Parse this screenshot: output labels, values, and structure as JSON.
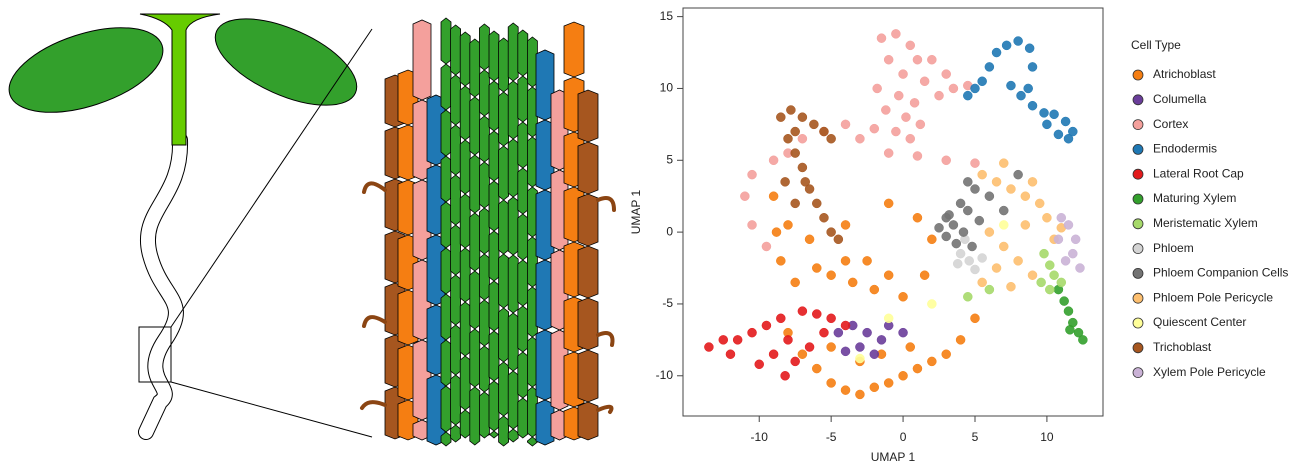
{
  "chart_data": {
    "type": "scatter",
    "xlabel": "UMAP 1",
    "ylabel": "UMAP 1",
    "xlim": [
      -15.3,
      13.9
    ],
    "ylim": [
      -12.8,
      15.6
    ],
    "xticks": [
      -10,
      -5,
      0,
      5,
      10
    ],
    "yticks": [
      -10,
      -5,
      0,
      5,
      10,
      15
    ],
    "legend_title": "Cell Type",
    "series": [
      {
        "name": "Atrichoblast",
        "color": "#f57e12",
        "x": [
          -8,
          -7,
          -6,
          -5,
          -4,
          -3,
          -2,
          -1,
          0,
          1,
          2,
          3,
          4,
          5,
          -3,
          -1.5,
          0.5,
          -5,
          -9,
          -8.8,
          -8.5,
          -7.5,
          -6,
          -5,
          -3.5,
          -2,
          -4,
          -6.5,
          -2.5,
          -1,
          0,
          1.5,
          2,
          1,
          -1,
          -8,
          -4
        ],
        "y": [
          -7,
          -8.5,
          -9.5,
          -10.5,
          -11,
          -11.3,
          -10.8,
          -10.5,
          -10,
          -9.5,
          -9,
          -8.5,
          -7.5,
          -6,
          -9,
          -8.5,
          -8,
          -8,
          2.5,
          0,
          -2,
          -3.5,
          -2.5,
          -3,
          -3.5,
          -4,
          -2,
          -0.5,
          -2,
          -3,
          -4.5,
          -3,
          -0.5,
          1,
          2,
          0.5,
          0.5
        ]
      },
      {
        "name": "Columella",
        "color": "#6a3d9a",
        "x": [
          -4.5,
          -3.5,
          -2.5,
          -1.5,
          -3,
          -2,
          -4,
          -1,
          0
        ],
        "y": [
          -7,
          -6.5,
          -7,
          -7.5,
          -8,
          -8.5,
          -8.3,
          -6.5,
          -7
        ]
      },
      {
        "name": "Cortex",
        "color": "#f4a09c",
        "x": [
          -1.5,
          -0.5,
          0.5,
          1,
          -1,
          0,
          1.5,
          -1.8,
          -0.3,
          0.8,
          -1.2,
          0.2,
          -0.5,
          0.5,
          1.2,
          2.5,
          3.5,
          4.5,
          3,
          2,
          -4,
          -5.5,
          -7,
          -9,
          -10.5,
          -11,
          -10.5,
          -9.5,
          -8,
          -3,
          -2,
          -1,
          1,
          3,
          5
        ],
        "y": [
          13.5,
          13.8,
          13,
          12,
          12,
          11,
          10.5,
          10,
          9.5,
          9,
          8.5,
          8,
          7,
          6.5,
          7.5,
          9.5,
          10,
          10.2,
          11,
          12,
          7.5,
          7,
          6.5,
          5,
          4,
          2.5,
          0.5,
          -1,
          5.5,
          6.5,
          7.2,
          5.5,
          5.3,
          5,
          4.8
        ]
      },
      {
        "name": "Endodermis",
        "color": "#1f78b4",
        "x": [
          4.5,
          5,
          5.5,
          6,
          6.5,
          7.2,
          8,
          8.8,
          9,
          8.7,
          9,
          9.8,
          10.5,
          11.3,
          11.8,
          11.5,
          10.8,
          10,
          8.2,
          7.5
        ],
        "y": [
          9.5,
          10,
          10.5,
          11.5,
          12.5,
          13,
          13.3,
          12.8,
          11.5,
          10,
          8.8,
          8.3,
          8.2,
          7.7,
          7,
          6.5,
          6.8,
          7.5,
          9.5,
          10.2
        ]
      },
      {
        "name": "Lateral Root Cap",
        "color": "#e31a1c",
        "x": [
          -13.5,
          -12.5,
          -11.5,
          -12,
          -10.5,
          -9.5,
          -8.5,
          -7,
          -6,
          -5,
          -8,
          -9,
          -7.5,
          -6.5,
          -10,
          -8.2,
          -5.5,
          -4
        ],
        "y": [
          -8,
          -7.5,
          -7.5,
          -8.5,
          -7,
          -6.5,
          -6,
          -5.5,
          -5.7,
          -6,
          -7.5,
          -8.5,
          -9,
          -8,
          -9.2,
          -10,
          -7,
          -6.5
        ]
      },
      {
        "name": "Maturing Xylem",
        "color": "#33a02c",
        "x": [
          10.8,
          11.2,
          11.5,
          11.8,
          12.2,
          12.5,
          11.6
        ],
        "y": [
          -4,
          -4.8,
          -5.5,
          -6.3,
          -7,
          -7.5,
          -6.8
        ]
      },
      {
        "name": "Meristematic Xylem",
        "color": "#a6d96a",
        "x": [
          9.8,
          10.2,
          10.5,
          11,
          10.2,
          9.6,
          6,
          4.5
        ],
        "y": [
          -1.5,
          -2.3,
          -3,
          -3.5,
          -4,
          -3.5,
          -4,
          -4.5
        ]
      },
      {
        "name": "Phloem",
        "color": "#d4d4d4",
        "x": [
          4,
          4.6,
          5,
          3.8,
          5.5,
          4.3
        ],
        "y": [
          -1.5,
          -2,
          -2.6,
          -2.2,
          -1.8,
          -0.5
        ]
      },
      {
        "name": "Phloem Companion Cells",
        "color": "#737373",
        "x": [
          2.5,
          3,
          3.5,
          3.2,
          4,
          4.5,
          4.2,
          3.7,
          4.8,
          5.3,
          3,
          4.5,
          5,
          6,
          7,
          8
        ],
        "y": [
          0.3,
          -0.3,
          0.5,
          1.2,
          2,
          1.5,
          0,
          -0.8,
          -1,
          0.8,
          1,
          3.5,
          3,
          2.5,
          1.5,
          4
        ]
      },
      {
        "name": "Phloem Pole Pericycle",
        "color": "#fdbf6f",
        "x": [
          5.5,
          6.5,
          7.5,
          8.5,
          9.5,
          10,
          6,
          7,
          8,
          9,
          6.5,
          7.5,
          5.5,
          8.5,
          7,
          9,
          10.5,
          11
        ],
        "y": [
          4,
          3.5,
          3,
          2.5,
          2,
          1,
          0,
          -1,
          -2,
          -3,
          -2.5,
          -3.8,
          -3.5,
          0.5,
          4.8,
          3.5,
          -0.5,
          0.3
        ]
      },
      {
        "name": "Quiescent Center",
        "color": "#ffff99",
        "x": [
          -3,
          2,
          7,
          -1
        ],
        "y": [
          -8.8,
          -5,
          0.5,
          -6
        ]
      },
      {
        "name": "Trichoblast",
        "color": "#a6561f",
        "x": [
          -8.5,
          -7.8,
          -7,
          -6.2,
          -5.5,
          -5,
          -7.5,
          -8,
          -7.5,
          -7,
          -6.5,
          -6,
          -5.5,
          -5,
          -6.8,
          -7.5,
          -8.2,
          -4.5
        ],
        "y": [
          8,
          8.5,
          8,
          7.5,
          7,
          6.5,
          7,
          6.5,
          5.5,
          4.5,
          3,
          2,
          1,
          0,
          3.5,
          2,
          3.5,
          -0.5
        ]
      },
      {
        "name": "Xylem Pole Pericycle",
        "color": "#cab2d6",
        "x": [
          11,
          11.5,
          12,
          11.8,
          12.3,
          11.3,
          10.8
        ],
        "y": [
          1,
          0.5,
          -0.5,
          -1.5,
          -2.5,
          -2,
          -0.5
        ]
      }
    ]
  }
}
